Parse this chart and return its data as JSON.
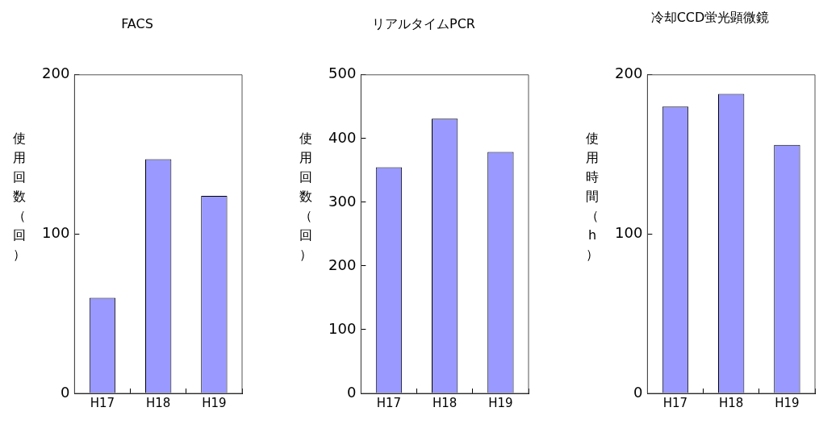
{
  "chart_data": [
    {
      "type": "bar",
      "title": "FACS",
      "ylabel": "使用回数（回）",
      "categories": [
        "H17",
        "H18",
        "H19"
      ],
      "values": [
        60,
        147,
        124
      ],
      "color": "#9999ff",
      "ylim": [
        0,
        200
      ],
      "yticks": [
        0,
        100,
        200
      ],
      "grid": false
    },
    {
      "type": "bar",
      "title": "リアルタイムPCR",
      "ylabel": "使用回数（回）",
      "categories": [
        "H17",
        "H18",
        "H19"
      ],
      "values": [
        355,
        431,
        379
      ],
      "color": "#9999ff",
      "ylim": [
        0,
        500
      ],
      "yticks": [
        0,
        100,
        200,
        300,
        400,
        500
      ],
      "grid": false
    },
    {
      "type": "bar",
      "title": "冷却CCD蛍光顕微鏡",
      "ylabel": "使用時間（h）",
      "categories": [
        "H17",
        "H18",
        "H19"
      ],
      "values": [
        180,
        188,
        156
      ],
      "color": "#9999ff",
      "ylim": [
        0,
        200
      ],
      "yticks": [
        0,
        100,
        200
      ],
      "grid": false
    }
  ]
}
